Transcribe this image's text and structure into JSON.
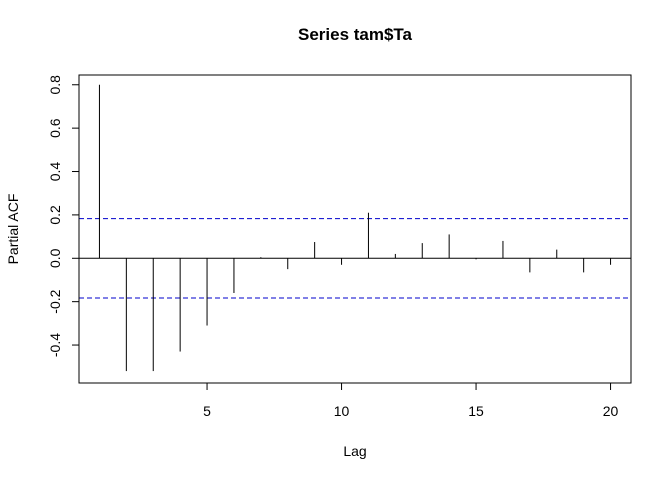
{
  "chart_data": {
    "type": "bar",
    "title": "Series  tam$Ta",
    "xlabel": "Lag",
    "ylabel": "Partial ACF",
    "x_ticks": [
      5,
      10,
      15,
      20
    ],
    "y_ticks": [
      -0.4,
      -0.2,
      0.0,
      0.2,
      0.4,
      0.6,
      0.8
    ],
    "xlim": [
      0.24,
      20.76
    ],
    "ylim": [
      -0.575,
      0.845
    ],
    "confidence_band": 0.183,
    "confidence_color": "#0000cc",
    "grid": false,
    "series": [
      {
        "x": [
          1,
          2,
          3,
          4,
          5,
          6,
          7,
          8,
          9,
          10,
          11,
          12,
          13,
          14,
          15,
          16,
          17,
          18,
          19,
          20
        ],
        "values": [
          0.8,
          -0.52,
          -0.52,
          -0.43,
          -0.31,
          -0.16,
          0.005,
          -0.05,
          0.075,
          -0.03,
          0.21,
          0.02,
          0.07,
          0.11,
          -0.005,
          0.08,
          -0.065,
          0.04,
          -0.065,
          -0.03
        ]
      }
    ]
  }
}
